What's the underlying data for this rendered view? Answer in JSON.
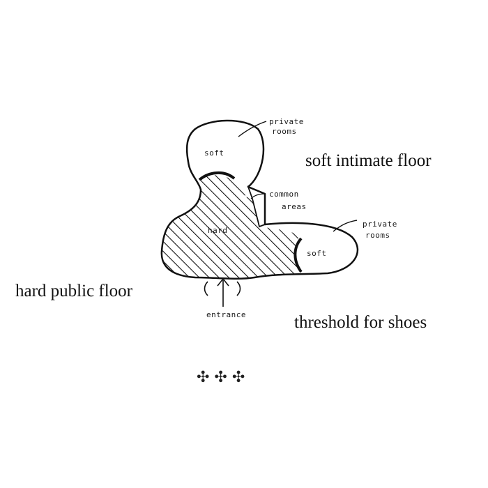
{
  "diagram": {
    "labels": {
      "private_rooms_top_1": "private",
      "private_rooms_top_2": "rooms",
      "soft_top": "soft",
      "common_areas_1": "common",
      "common_areas_2": "areas",
      "hard": "hard",
      "private_rooms_right_1": "private",
      "private_rooms_right_2": "rooms",
      "soft_right": "soft",
      "entrance": "entrance"
    },
    "captions": {
      "soft_intimate_floor": "soft intimate floor",
      "hard_public_floor": "hard public floor",
      "threshold_for_shoes": "threshold for shoes"
    },
    "ornament": "✣ ✣ ✣"
  }
}
